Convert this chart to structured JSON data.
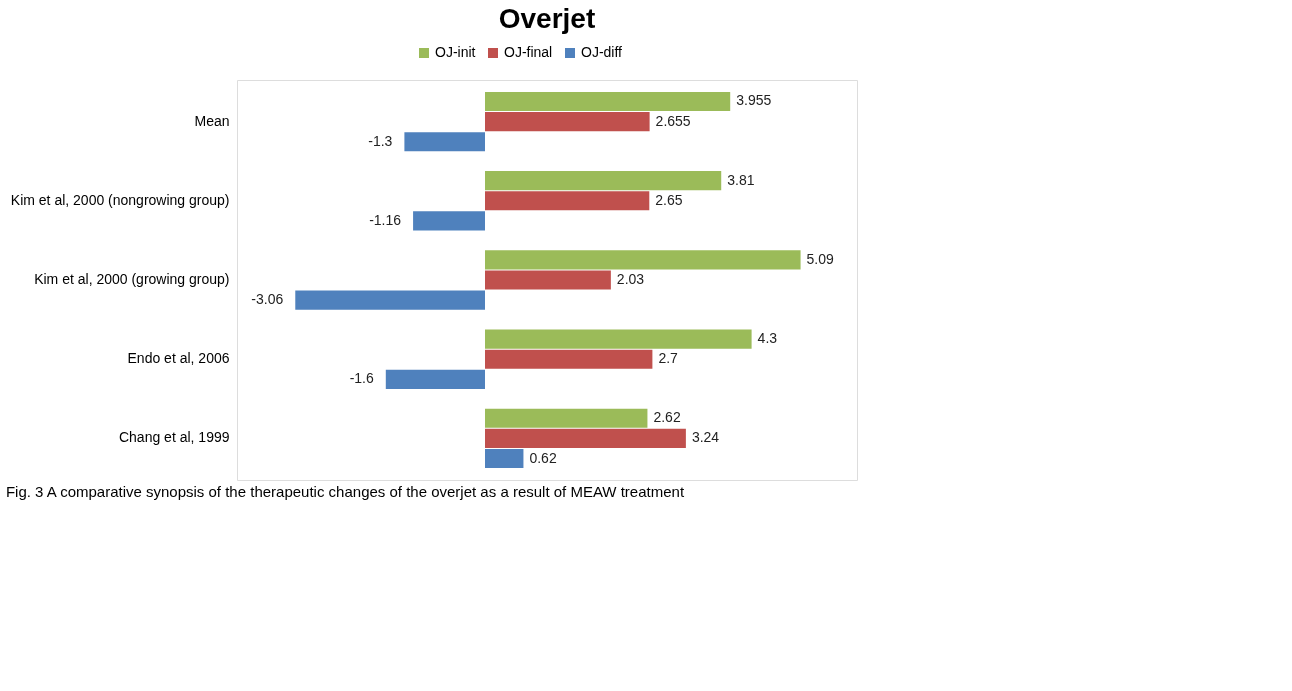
{
  "chart_data": {
    "type": "bar",
    "orientation": "horizontal",
    "title": "Overjet",
    "categories": [
      "Mean",
      "Kim et al,  2000 (nongrowing group)",
      "Kim et al,  2000 (growing group)",
      "Endo et al, 2006",
      "Chang et al, 1999"
    ],
    "series": [
      {
        "name": "OJ-init",
        "color": "#9bbb59",
        "values": [
          3.955,
          3.81,
          5.09,
          4.3,
          2.62
        ]
      },
      {
        "name": "OJ-final",
        "color": "#c0504d",
        "values": [
          2.655,
          2.65,
          2.03,
          2.7,
          3.24
        ]
      },
      {
        "name": "OJ-diff",
        "color": "#4f81bd",
        "values": [
          -1.3,
          -1.16,
          -3.06,
          -1.6,
          0.62
        ]
      }
    ],
    "data_labels": true,
    "legend": "top",
    "annotations": [
      "Fig. 3 A comparative synopsis of the therapeutic changes of the overjet as a result of MEAW treatment"
    ]
  }
}
